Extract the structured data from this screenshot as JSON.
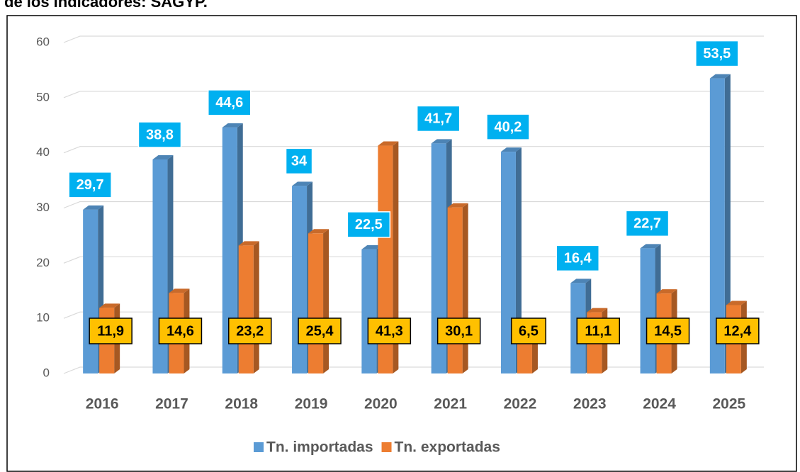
{
  "chart_data": {
    "type": "bar",
    "title": "de los indicadores: SAGYP.",
    "categories": [
      "2016",
      "2017",
      "2018",
      "2019",
      "2020",
      "2021",
      "2022",
      "2023",
      "2024",
      "2025"
    ],
    "series": [
      {
        "name": "Tn. importadas",
        "color": "#5b9bd5",
        "label_color": "#00b0f0",
        "values": [
          29.7,
          38.8,
          44.6,
          34,
          22.5,
          41.7,
          40.2,
          16.4,
          22.7,
          53.5
        ],
        "value_labels": [
          "29,7",
          "38,8",
          "44,6",
          "34",
          "22,5",
          "41,7",
          "40,2",
          "16,4",
          "22,7",
          "53,5"
        ]
      },
      {
        "name": "Tn. exportadas",
        "color": "#ed7d31",
        "label_color": "#ffc000",
        "values": [
          11.9,
          14.6,
          23.2,
          25.4,
          41.3,
          30.1,
          6.5,
          11.1,
          14.5,
          12.4
        ],
        "value_labels": [
          "11,9",
          "14,6",
          "23,2",
          "25,4",
          "41,3",
          "30,1",
          "6,5",
          "11,1",
          "14,5",
          "12,4"
        ]
      }
    ],
    "ylim": [
      0,
      60
    ],
    "yticks": [
      0,
      10,
      20,
      30,
      40,
      50,
      60
    ],
    "grid": true,
    "legend": "bottom"
  }
}
